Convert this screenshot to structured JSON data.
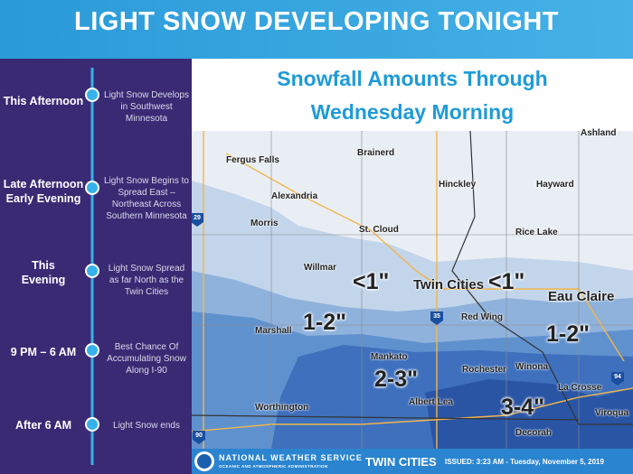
{
  "header": {
    "title": "LIGHT SNOW DEVELOPING TONIGHT"
  },
  "timeline": [
    {
      "time": "This Afternoon",
      "description": "Light Snow Develops in Southwest Minnesota"
    },
    {
      "time": "Late Afternoon Early Evening",
      "description": "Light Snow Begins to Spread East – Northeast Across Southern Minnesota"
    },
    {
      "time": "This Evening",
      "description": "Light Snow Spread as far North as the Twin Cities"
    },
    {
      "time": "9 PM – 6 AM",
      "description": "Best Chance Of Accumulating Snow Along I-90"
    },
    {
      "time": "After 6 AM",
      "description": "Light Snow ends"
    }
  ],
  "map": {
    "title": [
      "Snowfall  Amounts Through",
      "Wednesday Morning"
    ],
    "cities": [
      "Ashland",
      "Fergus Falls",
      "Brainerd",
      "Alexandria",
      "Hinckley",
      "Hayward",
      "Morris",
      "St. Cloud",
      "Rice Lake",
      "Willmar",
      "Twin Cities",
      "Eau Claire",
      "Red Wing",
      "Marshall",
      "Mankato",
      "Rochester",
      "Winona",
      "La Crosse",
      "Albert Lea",
      "Worthington",
      "Viroqua",
      "Decorah"
    ],
    "amounts": [
      "<1\"",
      "<1\"",
      "1-2\"",
      "1-2\"",
      "2-3\"",
      "3-4\""
    ],
    "interstates": [
      "29",
      "35",
      "94",
      "90"
    ]
  },
  "footer": {
    "agency": "NATIONAL WEATHER SERVICE",
    "subagency": "OCEANIC AND ATMOSPHERIC ADMINISTRATION",
    "office": "TWIN CITIES",
    "issued": "ISSUED: 3:23 AM - Tuesday, November 5, 2019"
  }
}
